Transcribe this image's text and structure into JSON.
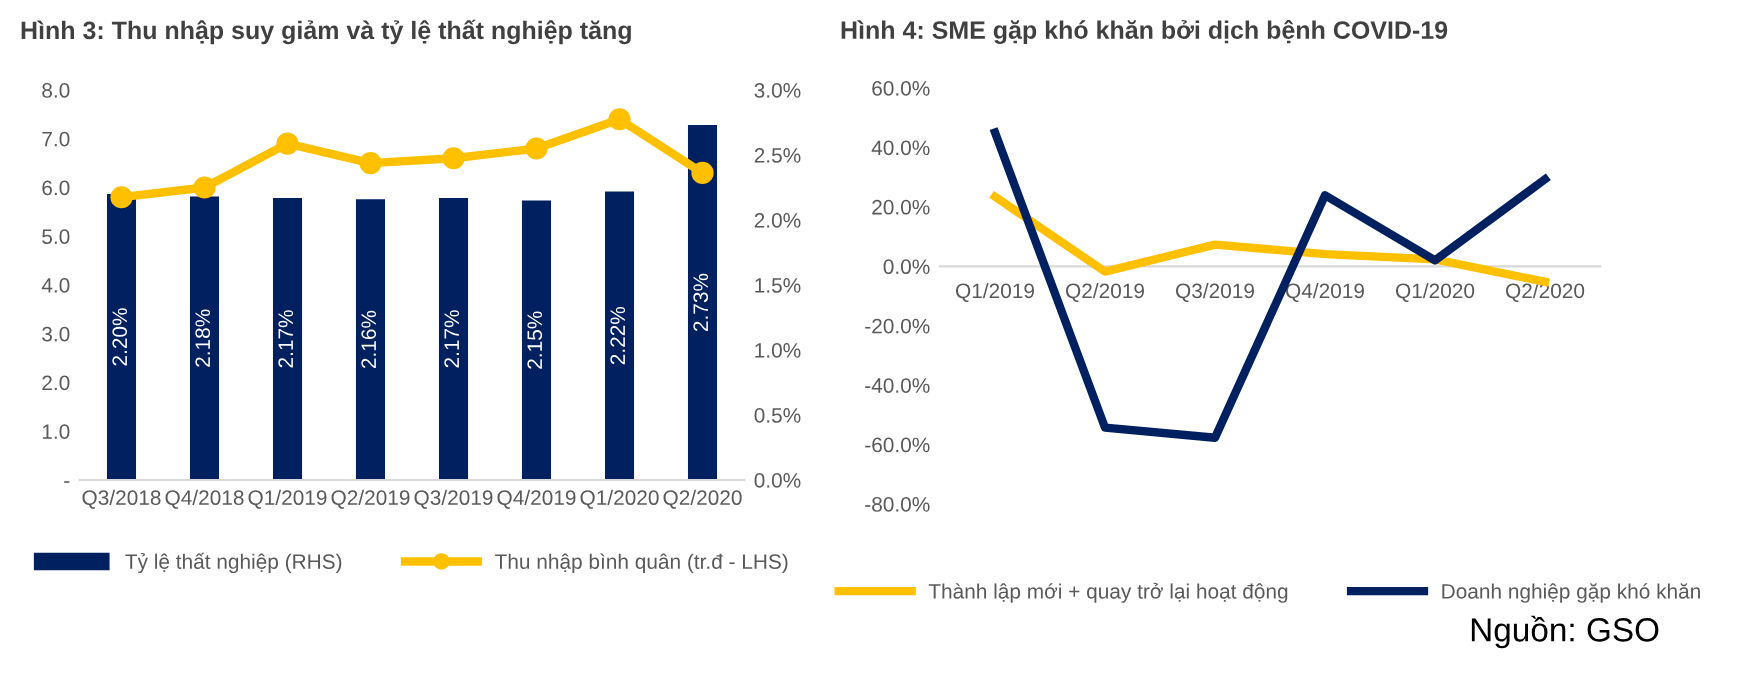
{
  "chart_data": [
    {
      "type": "bar",
      "title": "Hình 3: Thu nhập suy giảm và tỷ lệ thất nghiệp tăng",
      "categories": [
        "Q3/2018",
        "Q4/2018",
        "Q1/2019",
        "Q2/2019",
        "Q3/2019",
        "Q4/2019",
        "Q1/2020",
        "Q2/2020"
      ],
      "series": [
        {
          "name": "Tỷ lệ thất nghiệp (RHS)",
          "type": "bar",
          "axis": "y2",
          "color": "#002060",
          "values": [
            2.2,
            2.18,
            2.17,
            2.16,
            2.17,
            2.15,
            2.22,
            2.73
          ],
          "value_labels": [
            "2.20%",
            "2.18%",
            "2.17%",
            "2.16%",
            "2.17%",
            "2.15%",
            "2.22%",
            "2.73%"
          ]
        },
        {
          "name": "Thu nhập bình quân (tr.đ - LHS)",
          "type": "line",
          "color": "#ffc000",
          "marker": "circle",
          "values": [
            5.8,
            6.0,
            6.9,
            6.5,
            6.6,
            6.8,
            7.4,
            6.3
          ]
        }
      ],
      "ylim": [
        0,
        8
      ],
      "yticks": [
        {
          "value": 0,
          "label": "-"
        },
        {
          "value": 1,
          "label": "1.0"
        },
        {
          "value": 2,
          "label": "2.0"
        },
        {
          "value": 3,
          "label": "3.0"
        },
        {
          "value": 4,
          "label": "4.0"
        },
        {
          "value": 5,
          "label": "5.0"
        },
        {
          "value": 6,
          "label": "6.0"
        },
        {
          "value": 7,
          "label": "7.0"
        },
        {
          "value": 8,
          "label": "8.0"
        }
      ],
      "y2lim": [
        0,
        3
      ],
      "y2ticks": [
        {
          "value": 0,
          "label": "0.0%"
        },
        {
          "value": 0.5,
          "label": "0.5%"
        },
        {
          "value": 1,
          "label": "1.0%"
        },
        {
          "value": 1.5,
          "label": "1.5%"
        },
        {
          "value": 2,
          "label": "2.0%"
        },
        {
          "value": 2.5,
          "label": "2.5%"
        },
        {
          "value": 3,
          "label": "3.0%"
        }
      ],
      "grid": false,
      "legend": "bottom"
    },
    {
      "type": "line",
      "title": "Hình 4: SME gặp khó khăn bởi dịch bệnh COVID-19",
      "categories": [
        "Q1/2019",
        "Q2/2019",
        "Q3/2019",
        "Q4/2019",
        "Q1/2020",
        "Q2/2020"
      ],
      "series": [
        {
          "name": "Thành lập mới + quay trở lại hoạt động",
          "color": "#ffc000",
          "values": [
            23.4,
            -1.8,
            7.3,
            4.1,
            2.3,
            -5.2
          ]
        },
        {
          "name": "Doanh nghiệp gặp khó khăn",
          "color": "#002060",
          "values": [
            45.0,
            -54.3,
            -57.7,
            23.9,
            2.0,
            29.3
          ]
        }
      ],
      "ylim": [
        -80,
        60
      ],
      "yticks": [
        {
          "value": -80,
          "label": "-80.0%"
        },
        {
          "value": -60,
          "label": "-60.0%"
        },
        {
          "value": -40,
          "label": "-40.0%"
        },
        {
          "value": -20,
          "label": "-20.0%"
        },
        {
          "value": 0,
          "label": "0.0%"
        },
        {
          "value": 20,
          "label": "20.0%"
        },
        {
          "value": 40,
          "label": "40.0%"
        },
        {
          "value": 60,
          "label": "60.0%"
        }
      ],
      "grid": false,
      "legend": "bottom",
      "marker": "none",
      "annotations": [
        "Nguồn: GSO"
      ]
    }
  ]
}
